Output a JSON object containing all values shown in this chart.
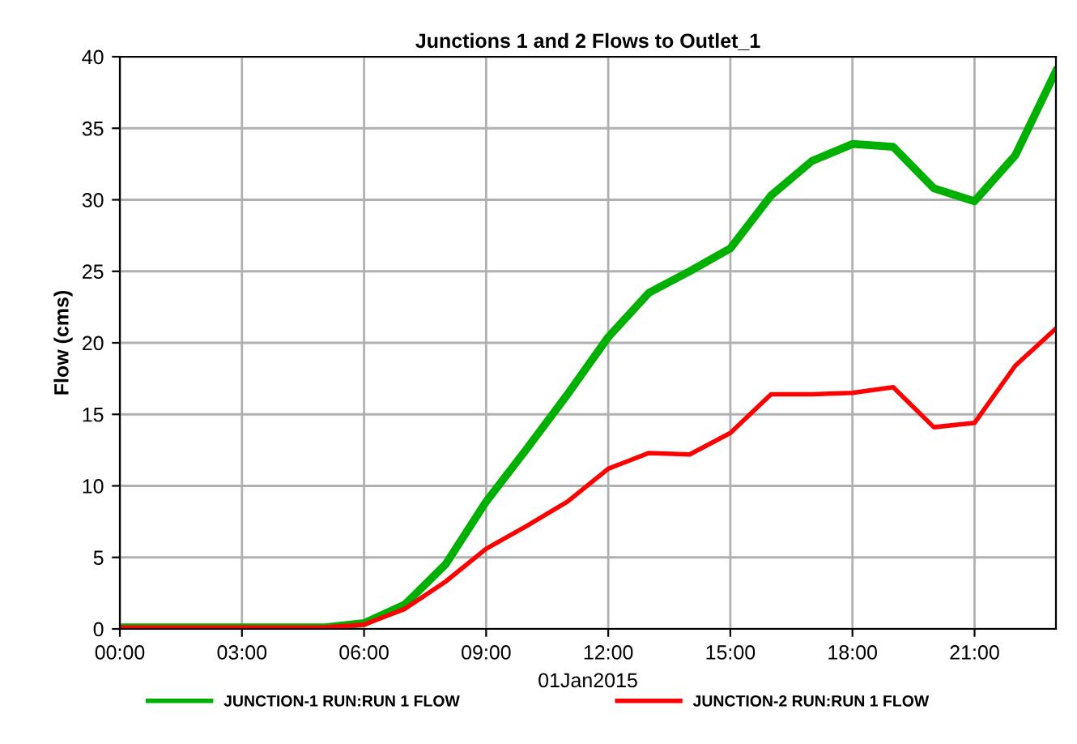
{
  "chart_data": {
    "type": "line",
    "title": "Junctions 1 and 2 Flows to Outlet_1",
    "xlabel": "01Jan2015",
    "ylabel": "Flow (cms)",
    "x": [
      0,
      1,
      2,
      3,
      4,
      5,
      6,
      7,
      8,
      9,
      10,
      11,
      12,
      13,
      14,
      15,
      16,
      17,
      18,
      19,
      20,
      21,
      22,
      23
    ],
    "series": [
      {
        "name": "JUNCTION-1 RUN:RUN 1 FLOW",
        "color": "#00b000",
        "values": [
          0.1,
          0.1,
          0.1,
          0.1,
          0.1,
          0.1,
          0.4,
          1.7,
          4.5,
          8.9,
          12.6,
          16.4,
          20.4,
          23.5,
          25.0,
          26.6,
          30.3,
          32.7,
          33.9,
          33.7,
          30.8,
          29.9,
          33.1,
          39.0
        ]
      },
      {
        "name": "JUNCTION-2 RUN:RUN 1 FLOW",
        "color": "#ff0000",
        "values": [
          0.1,
          0.1,
          0.1,
          0.1,
          0.1,
          0.1,
          0.3,
          1.4,
          3.3,
          5.6,
          7.2,
          8.9,
          11.2,
          12.3,
          12.2,
          13.7,
          16.4,
          16.4,
          16.5,
          16.9,
          14.1,
          14.4,
          18.4,
          21.0
        ]
      }
    ],
    "xlim": [
      0,
      23
    ],
    "ylim": [
      0,
      40
    ],
    "xticks": [
      {
        "value": 0,
        "label": "00:00"
      },
      {
        "value": 3,
        "label": "03:00"
      },
      {
        "value": 6,
        "label": "06:00"
      },
      {
        "value": 9,
        "label": "09:00"
      },
      {
        "value": 12,
        "label": "12:00"
      },
      {
        "value": 15,
        "label": "15:00"
      },
      {
        "value": 18,
        "label": "18:00"
      },
      {
        "value": 21,
        "label": "21:00"
      }
    ],
    "yticks": [
      0,
      5,
      10,
      15,
      20,
      25,
      30,
      35,
      40
    ],
    "grid": true,
    "legend": "bottom",
    "marker": "none",
    "line_style": "solid"
  }
}
